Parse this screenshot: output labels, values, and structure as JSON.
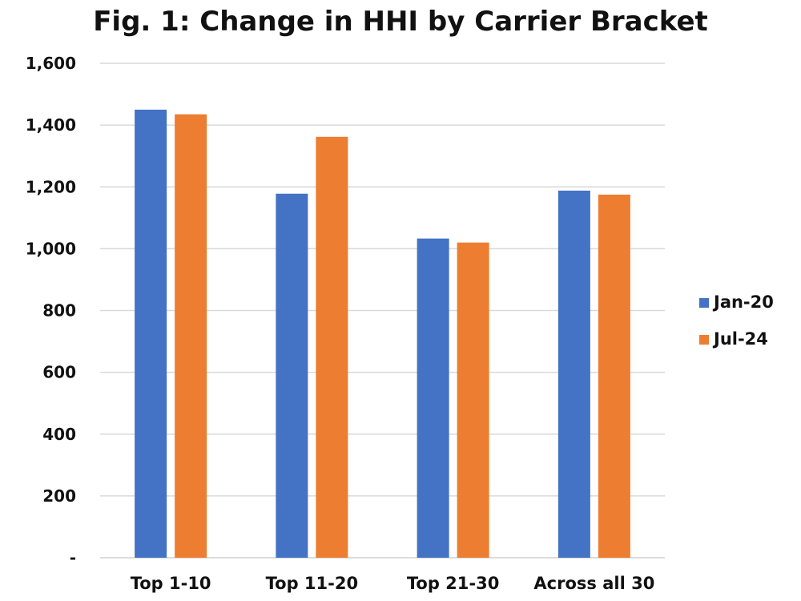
{
  "chart_data": {
    "type": "bar",
    "title": "Fig. 1: Change in HHI by Carrier Bracket",
    "xlabel": "",
    "ylabel": "",
    "categories": [
      "Top 1-10",
      "Top 11-20",
      "Top 21-30",
      "Across all 30"
    ],
    "series": [
      {
        "name": "Jan-20",
        "color": "#4472c4",
        "values": [
          1450,
          1178,
          1033,
          1188
        ]
      },
      {
        "name": "Jul-24",
        "color": "#ed7d31",
        "values": [
          1435,
          1362,
          1020,
          1175
        ]
      }
    ],
    "ylim": [
      0,
      1600
    ],
    "yticks": [
      {
        "value": 0,
        "label": "-"
      },
      {
        "value": 200,
        "label": "200"
      },
      {
        "value": 400,
        "label": "400"
      },
      {
        "value": 600,
        "label": "600"
      },
      {
        "value": 800,
        "label": "800"
      },
      {
        "value": 1000,
        "label": "1,000"
      },
      {
        "value": 1200,
        "label": "1,200"
      },
      {
        "value": 1400,
        "label": "1,400"
      },
      {
        "value": 1600,
        "label": "1,600"
      }
    ],
    "grid": true,
    "legend_position": "right"
  }
}
